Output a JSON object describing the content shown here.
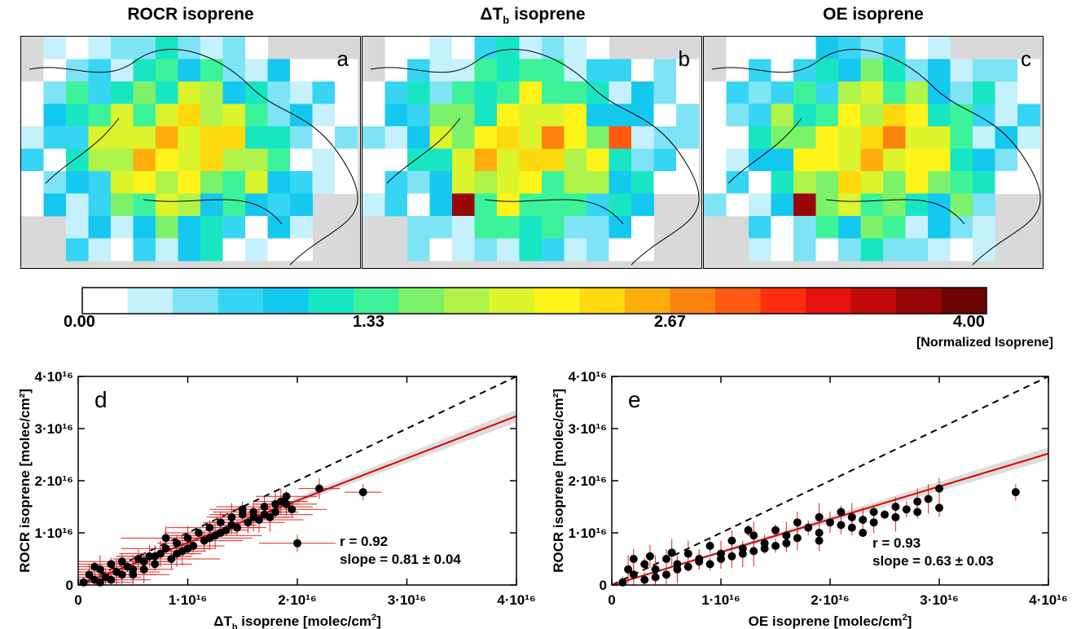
{
  "maps": [
    {
      "title": "ROCR isoprene",
      "letter": "a"
    },
    {
      "title_main": "ΔT",
      "title_sub": "b",
      "title_rest": " isoprene",
      "letter": "b"
    },
    {
      "title": "OE isoprene",
      "letter": "c"
    }
  ],
  "colorbar": {
    "ticks": [
      "0.00",
      "1.33",
      "2.67",
      "4.00"
    ],
    "unit": "[Normalized Isoprene]",
    "colors": [
      "#ffffff",
      "#c4f1fb",
      "#7fe3f6",
      "#36d5f3",
      "#14c8ef",
      "#18e6c3",
      "#3df39a",
      "#7cf26b",
      "#b0f34a",
      "#dcf42b",
      "#fff41a",
      "#ffd90f",
      "#ffae0d",
      "#ff8310",
      "#ff5a10",
      "#ff2d10",
      "#e8120e",
      "#c20a0a",
      "#980707",
      "#6e0505"
    ]
  },
  "chart_data": [
    {
      "type": "scatter",
      "panel_label": "d",
      "xlabel_main": "ΔT",
      "xlabel_sub": "b",
      "xlabel_rest": " isoprene [molec/cm",
      "xlabel_sup": "2",
      "xlabel_end": "]",
      "ylabel": "ROCR isoprene [molec/cm²]",
      "xlim": [
        0,
        4e+16
      ],
      "ylim": [
        0,
        4e+16
      ],
      "xticks": [
        "0",
        "1·10¹⁶",
        "2·10¹⁶",
        "3·10¹⁶",
        "4·10¹⁶"
      ],
      "yticks": [
        "0",
        "1·10¹⁶",
        "2·10¹⁶",
        "3·10¹⁶",
        "4·10¹⁶"
      ],
      "r_text": "r =  0.92",
      "slope_text": "slope =  0.81 ± 0.04",
      "fit_slope": 0.81,
      "points": [
        [
          0.05,
          0.05
        ],
        [
          0.1,
          0.2
        ],
        [
          0.15,
          0.1
        ],
        [
          0.2,
          0.3
        ],
        [
          0.25,
          0.15
        ],
        [
          0.3,
          0.4
        ],
        [
          0.35,
          0.25
        ],
        [
          0.4,
          0.2
        ],
        [
          0.45,
          0.35
        ],
        [
          0.5,
          0.3
        ],
        [
          0.55,
          0.5
        ],
        [
          0.6,
          0.45
        ],
        [
          0.65,
          0.55
        ],
        [
          0.7,
          0.4
        ],
        [
          0.75,
          0.6
        ],
        [
          0.8,
          0.7
        ],
        [
          0.85,
          0.5
        ],
        [
          0.9,
          0.8
        ],
        [
          0.95,
          0.65
        ],
        [
          1.0,
          0.9
        ],
        [
          1.05,
          0.75
        ],
        [
          1.1,
          1.0
        ],
        [
          1.15,
          0.85
        ],
        [
          1.2,
          1.1
        ],
        [
          1.25,
          0.95
        ],
        [
          1.3,
          1.2
        ],
        [
          1.35,
          1.05
        ],
        [
          1.4,
          1.3
        ],
        [
          1.45,
          1.1
        ],
        [
          1.5,
          1.35
        ],
        [
          1.55,
          1.2
        ],
        [
          1.6,
          1.4
        ],
        [
          1.65,
          1.25
        ],
        [
          1.7,
          1.5
        ],
        [
          1.75,
          1.3
        ],
        [
          1.8,
          1.55
        ],
        [
          1.85,
          1.6
        ],
        [
          1.9,
          1.7
        ],
        [
          1.95,
          1.45
        ],
        [
          2.0,
          0.8
        ],
        [
          2.2,
          1.85
        ],
        [
          2.6,
          1.78
        ],
        [
          0.3,
          0.1
        ],
        [
          0.5,
          0.2
        ],
        [
          0.2,
          0.05
        ],
        [
          0.7,
          0.55
        ],
        [
          1.0,
          0.7
        ],
        [
          1.2,
          0.9
        ],
        [
          1.4,
          1.15
        ],
        [
          1.6,
          1.3
        ],
        [
          1.8,
          1.4
        ],
        [
          0.15,
          0.35
        ],
        [
          0.4,
          0.45
        ],
        [
          0.6,
          0.3
        ],
        [
          0.9,
          0.6
        ],
        [
          1.3,
          1.0
        ],
        [
          1.5,
          1.45
        ],
        [
          1.7,
          1.35
        ],
        [
          1.9,
          1.55
        ],
        [
          0.8,
          0.9
        ]
      ]
    },
    {
      "type": "scatter",
      "panel_label": "e",
      "xlabel_main": "OE isoprene [molec/cm",
      "xlabel_sup": "2",
      "xlabel_end": "]",
      "ylabel": "ROCR isoprene [molec/cm²]",
      "xlim": [
        0,
        4e+16
      ],
      "ylim": [
        0,
        4e+16
      ],
      "xticks": [
        "0",
        "1·10¹⁶",
        "2·10¹⁶",
        "3·10¹⁶",
        "4·10¹⁶"
      ],
      "yticks": [
        "0",
        "1·10¹⁶",
        "2·10¹⁶",
        "3·10¹⁶",
        "4·10¹⁶"
      ],
      "r_text": "r =  0.93",
      "slope_text": "slope =  0.63 ± 0.03",
      "fit_slope": 0.63,
      "points": [
        [
          0.1,
          0.05
        ],
        [
          0.2,
          0.2
        ],
        [
          0.3,
          0.1
        ],
        [
          0.4,
          0.3
        ],
        [
          0.5,
          0.2
        ],
        [
          0.6,
          0.4
        ],
        [
          0.7,
          0.35
        ],
        [
          0.8,
          0.5
        ],
        [
          0.9,
          0.4
        ],
        [
          1.0,
          0.6
        ],
        [
          1.1,
          0.55
        ],
        [
          1.2,
          0.7
        ],
        [
          1.3,
          0.65
        ],
        [
          1.4,
          0.8
        ],
        [
          1.5,
          0.75
        ],
        [
          1.6,
          0.95
        ],
        [
          1.7,
          0.9
        ],
        [
          1.8,
          1.1
        ],
        [
          1.9,
          1.0
        ],
        [
          2.0,
          1.2
        ],
        [
          2.1,
          1.15
        ],
        [
          2.2,
          1.3
        ],
        [
          2.3,
          1.25
        ],
        [
          2.4,
          1.4
        ],
        [
          2.5,
          1.35
        ],
        [
          2.6,
          1.5
        ],
        [
          2.7,
          1.45
        ],
        [
          2.8,
          1.6
        ],
        [
          2.9,
          1.65
        ],
        [
          3.0,
          1.85
        ],
        [
          3.0,
          1.48
        ],
        [
          3.7,
          1.78
        ],
        [
          0.3,
          0.4
        ],
        [
          0.5,
          0.5
        ],
        [
          0.7,
          0.6
        ],
        [
          0.9,
          0.75
        ],
        [
          1.1,
          0.85
        ],
        [
          1.3,
          0.95
        ],
        [
          1.5,
          1.05
        ],
        [
          1.7,
          1.2
        ],
        [
          1.9,
          1.3
        ],
        [
          2.1,
          1.4
        ],
        [
          0.15,
          0.3
        ],
        [
          0.4,
          0.15
        ],
        [
          0.6,
          0.3
        ],
        [
          0.8,
          0.45
        ],
        [
          1.0,
          0.5
        ],
        [
          1.2,
          0.6
        ],
        [
          1.4,
          0.7
        ],
        [
          1.6,
          0.8
        ],
        [
          2.2,
          1.1
        ],
        [
          2.4,
          1.2
        ],
        [
          2.6,
          1.3
        ],
        [
          2.8,
          1.4
        ],
        [
          0.2,
          0.5
        ],
        [
          0.35,
          0.55
        ],
        [
          0.55,
          0.62
        ],
        [
          1.9,
          0.85
        ],
        [
          2.3,
          1.0
        ],
        [
          1.25,
          1.05
        ]
      ]
    }
  ]
}
